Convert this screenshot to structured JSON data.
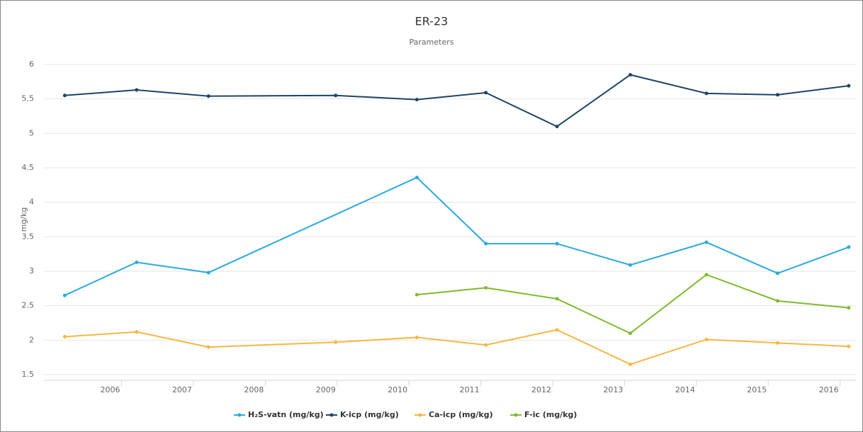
{
  "chart_data": {
    "type": "line",
    "title": "ER-23",
    "subtitle": "Parameters",
    "y_label": "mg/kg",
    "xlim": [
      2004.92,
      2016.22
    ],
    "xticks": [
      2006,
      2007,
      2008,
      2009,
      2010,
      2011,
      2012,
      2013,
      2014,
      2015,
      2016
    ],
    "ylim": [
      1.5,
      6
    ],
    "yticks": [
      1.5,
      2,
      2.5,
      3,
      3.5,
      4,
      4.5,
      5,
      5.5,
      6
    ],
    "grid": true,
    "series": [
      {
        "name": "H₂S-vatn (mg/kg)",
        "color": "#29a9e0",
        "x": [
          2005.21,
          2006.21,
          2007.21,
          2010.11,
          2011.07,
          2012.06,
          2013.08,
          2014.14,
          2015.13,
          2016.12
        ],
        "values": [
          2.65,
          3.13,
          2.98,
          4.36,
          3.4,
          3.4,
          3.09,
          3.42,
          2.97,
          3.35
        ]
      },
      {
        "name": "K-icp (mg/kg)",
        "color": "#1d4467",
        "x": [
          2005.21,
          2006.21,
          2007.21,
          2008.98,
          2010.11,
          2011.07,
          2012.06,
          2013.08,
          2014.14,
          2015.13,
          2016.12
        ],
        "values": [
          5.55,
          5.63,
          5.54,
          5.55,
          5.49,
          5.59,
          5.1,
          5.85,
          5.58,
          5.56,
          5.69
        ]
      },
      {
        "name": "Ca-icp (mg/kg)",
        "color": "#f7b740",
        "x": [
          2005.21,
          2006.21,
          2007.21,
          2008.98,
          2010.11,
          2011.07,
          2012.06,
          2013.08,
          2014.14,
          2015.13,
          2016.12
        ],
        "values": [
          2.05,
          2.12,
          1.9,
          1.97,
          2.04,
          1.93,
          2.15,
          1.65,
          2.01,
          1.96,
          1.91
        ]
      },
      {
        "name": "F-ic (mg/kg)",
        "color": "#7dbb2e",
        "x": [
          2010.11,
          2011.07,
          2012.06,
          2013.08,
          2014.14,
          2015.13,
          2016.12
        ],
        "values": [
          2.66,
          2.76,
          2.6,
          2.1,
          2.95,
          2.57,
          2.47
        ]
      }
    ]
  }
}
